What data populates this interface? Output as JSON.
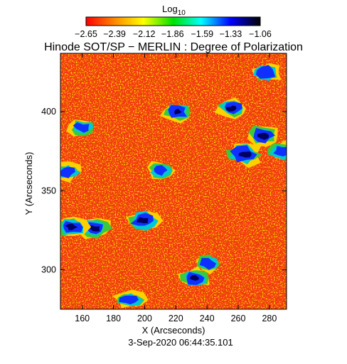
{
  "chart_data": {
    "type": "heatmap",
    "title": "Hinode SOT/SP − MERLIN : Degree of Polarization",
    "xlabel": "X (Arcseconds)",
    "ylabel": "Y (Arcseconds)",
    "timestamp": "3-Sep-2020 06:44:35.101",
    "colorbar": {
      "label": "Log",
      "label_subscript": "10",
      "tick_labels": [
        "−2.65",
        "−2.39",
        "−2.12",
        "−1.86",
        "−1.59",
        "−1.33",
        "−1.06"
      ],
      "tick_values": [
        -2.65,
        -2.39,
        -2.12,
        -1.86,
        -1.59,
        -1.33,
        -1.06
      ],
      "range": [
        -2.65,
        -1.06
      ],
      "colormap": [
        "#ff0000",
        "#ff8c00",
        "#ffff00",
        "#00e000",
        "#00ffff",
        "#0000ff",
        "#000000"
      ]
    },
    "xlim": [
      146,
      291
    ],
    "ylim": [
      275,
      437
    ],
    "x_ticks": [
      160,
      180,
      200,
      220,
      240,
      260,
      280
    ],
    "y_ticks": [
      300,
      350,
      400
    ],
    "field_colors": {
      "background": "#f03a10",
      "low": "#ff8c00",
      "mid": "#ffd000",
      "green": "#3cc83c",
      "cyan": "#00c8d0",
      "blue": "#1030ff",
      "dark": "#000060"
    },
    "high_polarization_regions": [
      {
        "x": 264,
        "y": 373,
        "level": -1.1
      },
      {
        "x": 276,
        "y": 385,
        "level": -1.2
      },
      {
        "x": 199,
        "y": 331,
        "level": -1.2
      },
      {
        "x": 168,
        "y": 326,
        "level": -1.3
      },
      {
        "x": 153,
        "y": 327,
        "level": -1.4
      },
      {
        "x": 221,
        "y": 400,
        "level": -1.5
      },
      {
        "x": 256,
        "y": 402,
        "level": -1.5
      },
      {
        "x": 232,
        "y": 295,
        "level": -1.5
      },
      {
        "x": 190,
        "y": 281,
        "level": -1.6
      },
      {
        "x": 278,
        "y": 425,
        "level": -1.6
      },
      {
        "x": 150,
        "y": 362,
        "level": -1.6
      },
      {
        "x": 288,
        "y": 375,
        "level": -1.7
      },
      {
        "x": 240,
        "y": 304,
        "level": -1.8
      },
      {
        "x": 160,
        "y": 390,
        "level": -1.9
      },
      {
        "x": 210,
        "y": 363,
        "level": -1.9
      }
    ]
  }
}
